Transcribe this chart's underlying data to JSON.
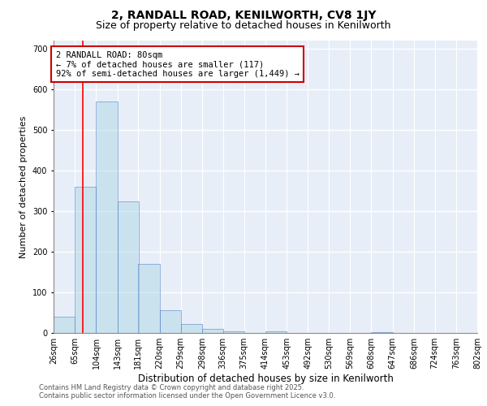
{
  "title1": "2, RANDALL ROAD, KENILWORTH, CV8 1JY",
  "title2": "Size of property relative to detached houses in Kenilworth",
  "xlabel": "Distribution of detached houses by size in Kenilworth",
  "ylabel": "Number of detached properties",
  "bin_labels": [
    "26sqm",
    "65sqm",
    "104sqm",
    "143sqm",
    "181sqm",
    "220sqm",
    "259sqm",
    "298sqm",
    "336sqm",
    "375sqm",
    "414sqm",
    "453sqm",
    "492sqm",
    "530sqm",
    "569sqm",
    "608sqm",
    "647sqm",
    "686sqm",
    "724sqm",
    "763sqm",
    "802sqm"
  ],
  "bin_edges": [
    26,
    65,
    104,
    143,
    181,
    220,
    259,
    298,
    336,
    375,
    414,
    453,
    492,
    530,
    569,
    608,
    647,
    686,
    724,
    763,
    802
  ],
  "bar_heights": [
    40,
    360,
    570,
    325,
    170,
    57,
    23,
    10,
    5,
    0,
    5,
    1,
    1,
    0,
    0,
    2,
    0,
    0,
    0,
    0,
    3
  ],
  "bar_color": "#add8e6",
  "bar_edge_color": "#4472c4",
  "bar_alpha": 0.5,
  "red_line_x": 80,
  "annotation_line1": "2 RANDALL ROAD: 80sqm",
  "annotation_line2": "← 7% of detached houses are smaller (117)",
  "annotation_line3": "92% of semi-detached houses are larger (1,449) →",
  "annotation_box_color": "#ffffff",
  "annotation_border_color": "#cc0000",
  "ylim": [
    0,
    720
  ],
  "yticks": [
    0,
    100,
    200,
    300,
    400,
    500,
    600,
    700
  ],
  "background_color": "#e8eef8",
  "grid_color": "#ffffff",
  "footer1": "Contains HM Land Registry data © Crown copyright and database right 2025.",
  "footer2": "Contains public sector information licensed under the Open Government Licence v3.0.",
  "title1_fontsize": 10,
  "title2_fontsize": 9,
  "xlabel_fontsize": 8.5,
  "ylabel_fontsize": 8,
  "tick_fontsize": 7,
  "annotation_fontsize": 7.5,
  "footer_fontsize": 6
}
